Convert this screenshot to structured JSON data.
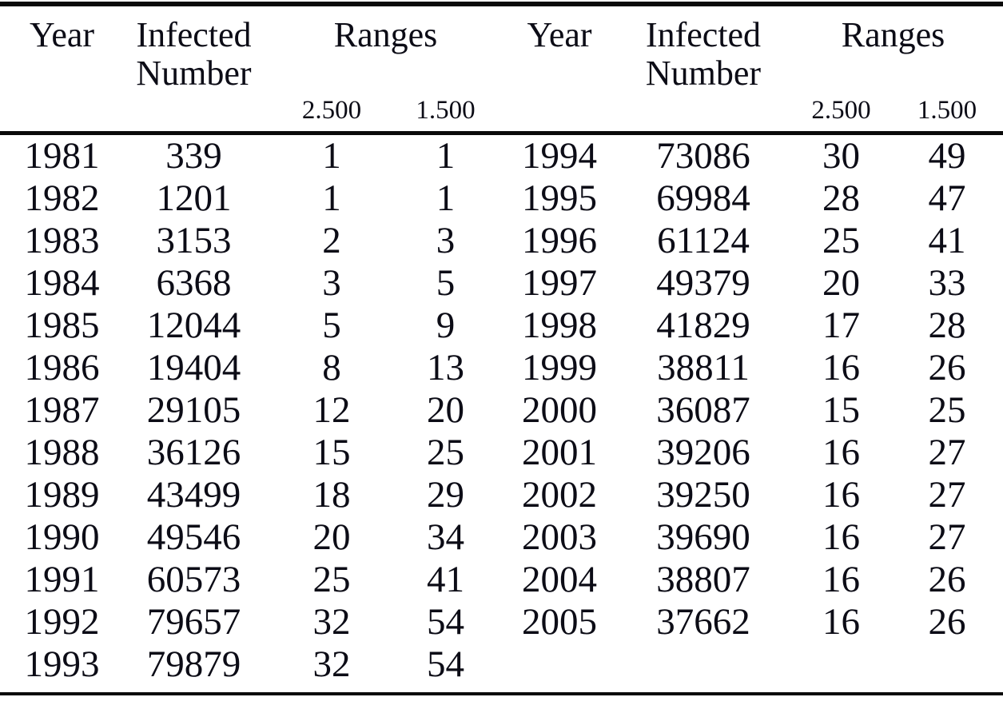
{
  "page": {
    "background_color": "#ffffff",
    "text_color": "#0c0c16",
    "rule_color": "#0a0a0a"
  },
  "table": {
    "header_left": {
      "year": "Year",
      "infected": "Infected Number",
      "ranges": "Ranges"
    },
    "header_right": {
      "year": "Year",
      "infected": "Infected Number",
      "ranges": "Ranges"
    },
    "subheader_left": {
      "range_1": "2.500",
      "range_2": "1.500"
    },
    "subheader_right": {
      "range_1": "2.500",
      "range_2": "1.500"
    },
    "rows": [
      [
        "1981",
        "339",
        "1",
        "1",
        "1994",
        "73086",
        "30",
        "49"
      ],
      [
        "1982",
        "1201",
        "1",
        "1",
        "1995",
        "69984",
        "28",
        "47"
      ],
      [
        "1983",
        "3153",
        "2",
        "3",
        "1996",
        "61124",
        "25",
        "41"
      ],
      [
        "1984",
        "6368",
        "3",
        "5",
        "1997",
        "49379",
        "20",
        "33"
      ],
      [
        "1985",
        "12044",
        "5",
        "9",
        "1998",
        "41829",
        "17",
        "28"
      ],
      [
        "1986",
        "19404",
        "8",
        "13",
        "1999",
        "38811",
        "16",
        "26"
      ],
      [
        "1987",
        "29105",
        "12",
        "20",
        "2000",
        "36087",
        "15",
        "25"
      ],
      [
        "1988",
        "36126",
        "15",
        "25",
        "2001",
        "39206",
        "16",
        "27"
      ],
      [
        "1989",
        "43499",
        "18",
        "29",
        "2002",
        "39250",
        "16",
        "27"
      ],
      [
        "1990",
        "49546",
        "20",
        "34",
        "2003",
        "39690",
        "16",
        "27"
      ],
      [
        "1991",
        "60573",
        "25",
        "41",
        "2004",
        "38807",
        "16",
        "26"
      ],
      [
        "1992",
        "79657",
        "32",
        "54",
        "2005",
        "37662",
        "16",
        "26"
      ],
      [
        "1993",
        "79879",
        "32",
        "54",
        "",
        "",
        "",
        ""
      ]
    ]
  }
}
